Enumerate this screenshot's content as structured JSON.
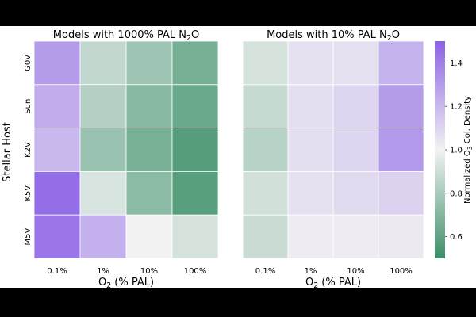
{
  "chart_data": {
    "type": "heatmap",
    "ylabel": "Stellar Host",
    "colorbar": {
      "label_main": "Normalized O",
      "label_sub": "3",
      "label_rest": " Col. Density",
      "range": [
        0.5,
        1.5
      ],
      "ticks": [
        "0.6",
        "0.8",
        "1.0",
        "1.2",
        "1.4"
      ],
      "tick_values": [
        0.6,
        0.8,
        1.0,
        1.2,
        1.4
      ],
      "colors": {
        "low": "#3b8f68",
        "mid": "#f2f2f2",
        "high": "#8c62e6"
      }
    },
    "panels": [
      {
        "title_main": "Models with 1000% PAL N",
        "title_sub": "2",
        "title_rest": "O",
        "xlabel_main": "O",
        "xlabel_sub": "2",
        "xlabel_rest": " (% PAL)",
        "x_categories": [
          "0.1%",
          "1%",
          "10%",
          "100%"
        ],
        "y_categories": [
          "G0V",
          "Sun",
          "K2V",
          "K5V",
          "M5V"
        ],
        "values": [
          [
            1.3,
            0.87,
            0.77,
            0.66
          ],
          [
            1.24,
            0.83,
            0.71,
            0.63
          ],
          [
            1.2,
            0.76,
            0.67,
            0.57
          ],
          [
            1.46,
            0.93,
            0.72,
            0.58
          ],
          [
            1.43,
            1.23,
            1.0,
            0.92
          ]
        ]
      },
      {
        "title_main": "Models with 10% PAL N",
        "title_sub": "2",
        "title_rest": "O",
        "xlabel_main": "O",
        "xlabel_sub": "2",
        "xlabel_rest": " (% PAL)",
        "x_categories": [
          "0.1%",
          "1%",
          "10%",
          "100%"
        ],
        "y_categories": [
          "G0V",
          "Sun",
          "K2V",
          "K5V",
          "M5V"
        ],
        "values": [
          [
            0.92,
            1.06,
            1.06,
            1.22
          ],
          [
            0.88,
            1.07,
            1.1,
            1.3
          ],
          [
            0.84,
            1.07,
            1.1,
            1.31
          ],
          [
            0.91,
            1.06,
            1.08,
            1.11
          ],
          [
            0.89,
            1.02,
            1.02,
            1.03
          ]
        ]
      }
    ]
  }
}
